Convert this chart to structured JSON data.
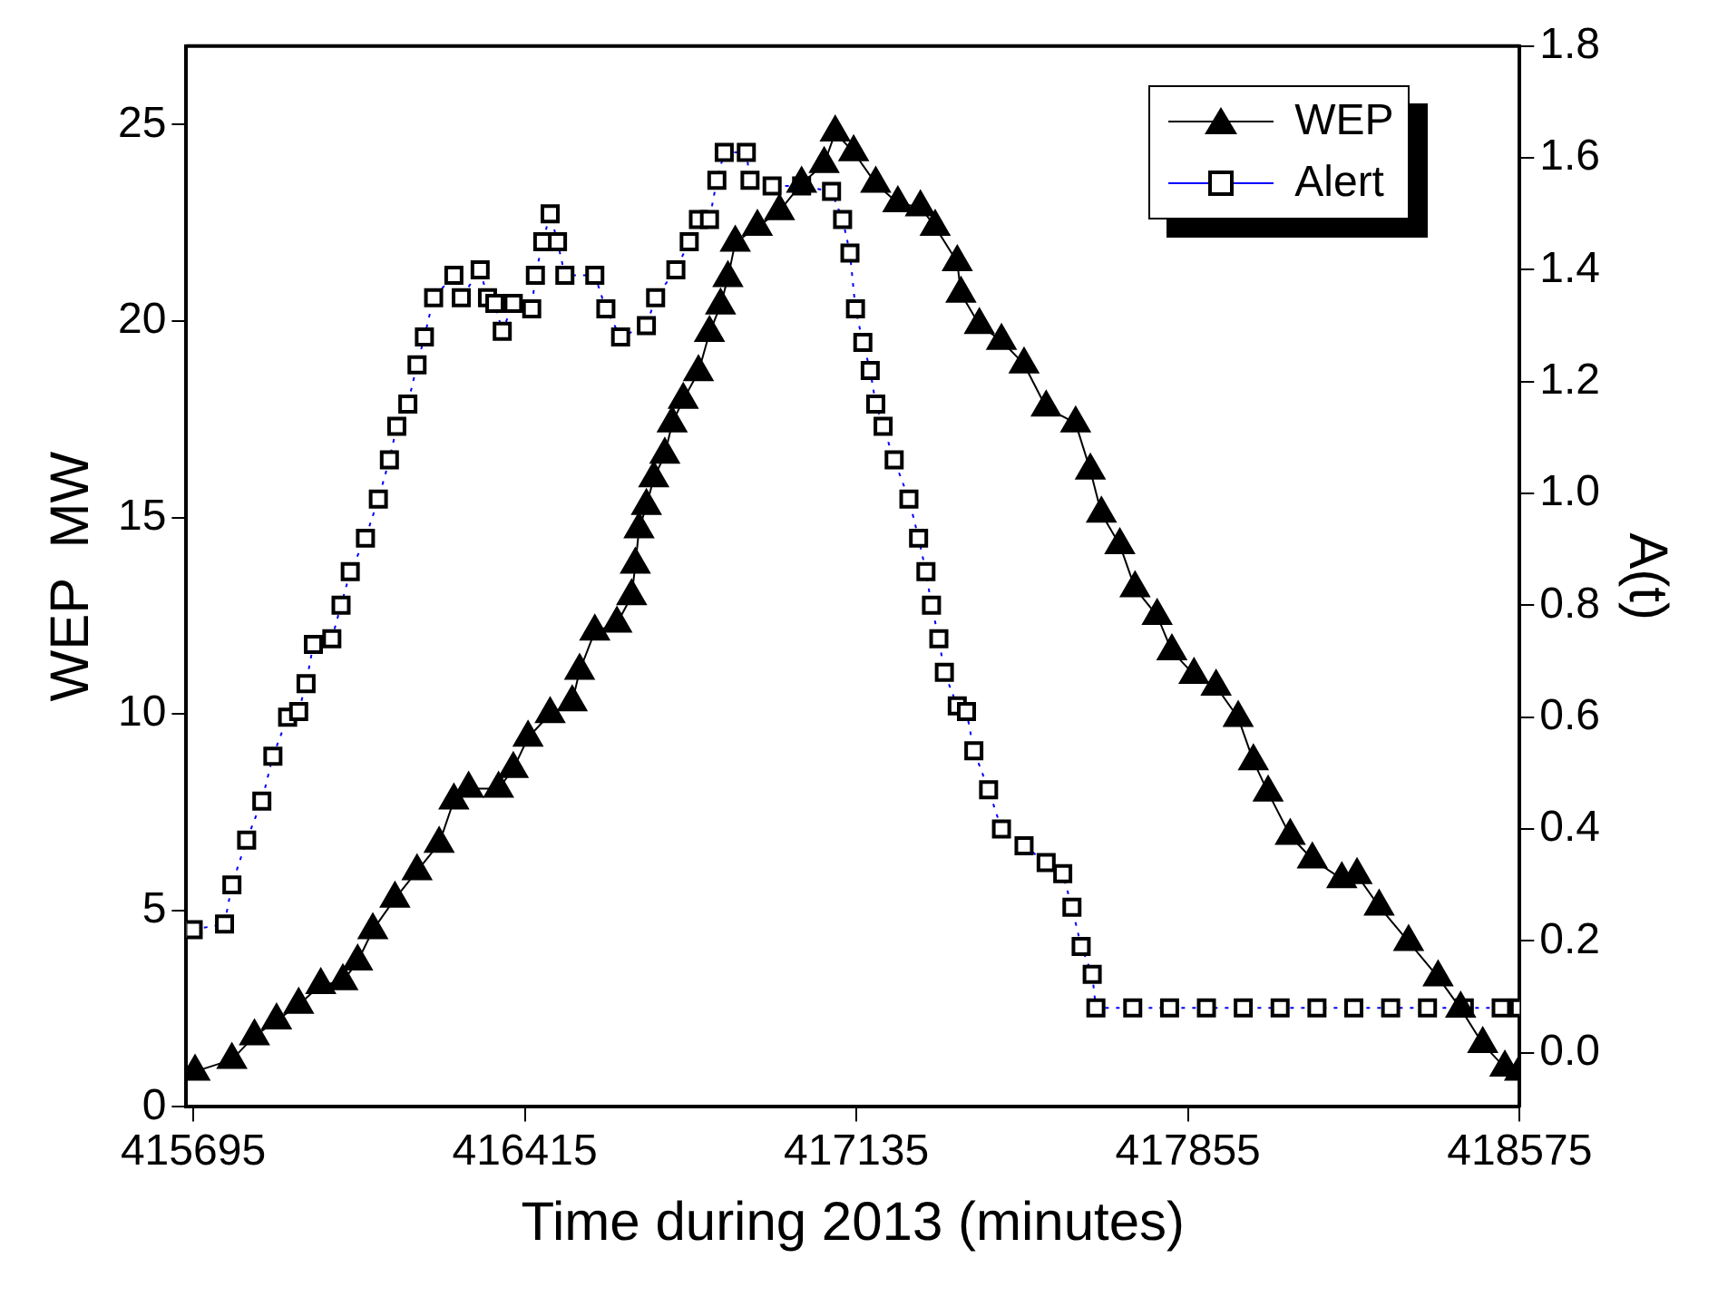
{
  "chart_data": {
    "type": "scatter",
    "xlabel": "Time during 2013 (minutes)",
    "ylabel": "WEP  MW",
    "y2label": "A(t)",
    "xlim": [
      415680,
      418575
    ],
    "xticks": [
      415695,
      416415,
      417135,
      417855,
      418575
    ],
    "ylim": [
      0,
      27
    ],
    "yticks": [
      0,
      5,
      10,
      15,
      20,
      25
    ],
    "y2lim": [
      -0.097,
      1.8
    ],
    "y2ticks": [
      {
        "value": 0,
        "label": "0.0"
      },
      0.2,
      0.4,
      0.6,
      0.8,
      {
        "value": 1,
        "label": "1.0"
      },
      1.2,
      1.4,
      1.6,
      1.8
    ],
    "grid": false,
    "legend": "top right",
    "series": [
      {
        "name": "WEP",
        "type": "line",
        "color": "#000000",
        "marker": "triangle",
        "line_style": "solid",
        "x": [
          415699,
          415779,
          415828,
          415876,
          415924,
          415972,
          416020,
          416052,
          416085,
          416133,
          416181,
          416229,
          416261,
          416293,
          416358,
          416390,
          416422,
          416470,
          416518,
          416534,
          416567,
          416615,
          416647,
          416655,
          416663,
          416679,
          416695,
          416719,
          416735,
          416759,
          416792,
          416816,
          416840,
          416856,
          416872,
          416920,
          416968,
          417016,
          417065,
          417089,
          417129,
          417177,
          417225,
          417274,
          417306,
          417354,
          417362,
          417402,
          417450,
          417499,
          417547,
          417611,
          417643,
          417667,
          417707,
          417740,
          417788,
          417820,
          417868,
          417916,
          417964,
          417997,
          418029,
          418077,
          418125,
          418189,
          418222,
          418270,
          418334,
          418398,
          418447,
          418495,
          418543,
          418575
        ],
        "values": [
          0.9,
          1.2,
          1.8,
          2.2,
          2.6,
          3.1,
          3.2,
          3.7,
          4.5,
          5.3,
          6.0,
          6.7,
          7.8,
          8.1,
          8.1,
          8.6,
          9.4,
          10.0,
          10.3,
          11.1,
          12.1,
          12.3,
          13.0,
          13.8,
          14.7,
          15.3,
          16.0,
          16.6,
          17.4,
          18.0,
          18.7,
          19.7,
          20.4,
          21.1,
          22.0,
          22.4,
          22.8,
          23.5,
          24.0,
          24.8,
          24.3,
          23.5,
          23.0,
          22.9,
          22.4,
          21.5,
          20.7,
          19.9,
          19.5,
          18.9,
          17.8,
          17.4,
          16.2,
          15.1,
          14.3,
          13.2,
          12.5,
          11.6,
          11.0,
          10.7,
          9.9,
          8.8,
          8.0,
          6.9,
          6.3,
          5.8,
          5.9,
          5.1,
          4.2,
          3.3,
          2.5,
          1.6,
          1.0,
          0.9
        ]
      },
      {
        "name": "Alert",
        "type": "line",
        "axis": "y2",
        "color": "#0000ff",
        "marker": "square",
        "line_style": "dotted",
        "x": [
          415695,
          415763,
          415779,
          415811,
          415844,
          415868,
          415900,
          415924,
          415940,
          415956,
          415996,
          416016,
          416036,
          416069,
          416097,
          416121,
          416137,
          416161,
          416181,
          416197,
          416217,
          416261,
          416277,
          416318,
          416334,
          416350,
          416366,
          416390,
          416430,
          416438,
          416454,
          416470,
          416486,
          416502,
          416567,
          416591,
          416623,
          416679,
          416699,
          416743,
          416772,
          416792,
          416816,
          416832,
          416848,
          416896,
          416904,
          416952,
          417016,
          417081,
          417105,
          417121,
          417133,
          417149,
          417165,
          417177,
          417193,
          417217,
          417249,
          417270,
          417286,
          417298,
          417314,
          417326,
          417354,
          417374,
          417390,
          417422,
          417450,
          417499,
          417547,
          417583,
          417603,
          417623,
          417647,
          417655,
          417735,
          417815,
          417895,
          417975,
          418055,
          418135,
          418215,
          418295,
          418375,
          418455,
          418535,
          418575
        ],
        "values": [
          0.22,
          0.23,
          0.3,
          0.38,
          0.45,
          0.53,
          0.6,
          0.61,
          0.66,
          0.73,
          0.74,
          0.8,
          0.86,
          0.92,
          0.99,
          1.06,
          1.12,
          1.16,
          1.23,
          1.28,
          1.35,
          1.39,
          1.35,
          1.4,
          1.35,
          1.34,
          1.29,
          1.34,
          1.33,
          1.39,
          1.45,
          1.5,
          1.45,
          1.39,
          1.39,
          1.33,
          1.28,
          1.3,
          1.35,
          1.4,
          1.45,
          1.49,
          1.49,
          1.56,
          1.61,
          1.61,
          1.56,
          1.55,
          1.55,
          1.54,
          1.49,
          1.43,
          1.33,
          1.27,
          1.22,
          1.16,
          1.12,
          1.06,
          0.99,
          0.92,
          0.86,
          0.8,
          0.74,
          0.68,
          0.62,
          0.61,
          0.54,
          0.47,
          0.4,
          0.37,
          0.34,
          0.32,
          0.26,
          0.19,
          0.14,
          0.08,
          0.08,
          0.08,
          0.08,
          0.08,
          0.08,
          0.08,
          0.08,
          0.08,
          0.08,
          0.08,
          0.08,
          0.08
        ]
      }
    ]
  }
}
